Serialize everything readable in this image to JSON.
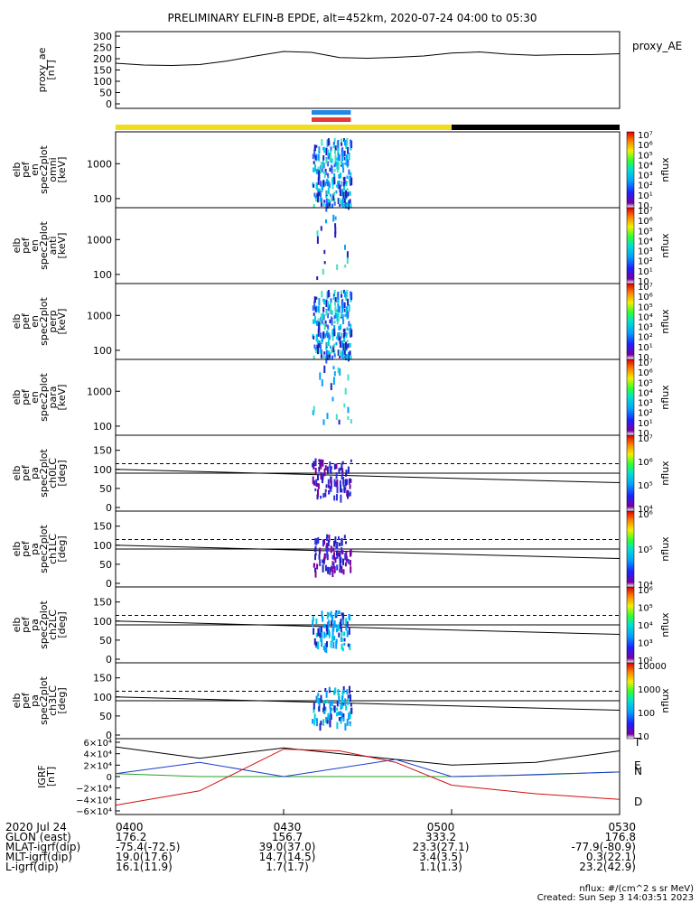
{
  "title": "PRELIMINARY ELFIN-B EPDE, alt=452km, 2020-07-24 04:00 to 05:30",
  "colors": {
    "orbit_bar_yellow": "#f2dc1e",
    "orbit_bar_black": "#000000",
    "marker_blue": "#1e88e5",
    "marker_red": "#e53935",
    "field_black": "#000000",
    "field_blue": "#1e3cc8",
    "field_green": "#28a028",
    "field_red": "#d01010"
  },
  "panels": [
    {
      "id": "ae",
      "ylabel": [
        "proxy_ae",
        "[nT]"
      ],
      "yticks": [
        "0",
        "50",
        "100",
        "150",
        "200",
        "250",
        "300"
      ],
      "side_label": "proxy_AE"
    },
    {
      "id": "omni",
      "ylabel": [
        "elb",
        "pef",
        "en",
        "spec2plot",
        "omni",
        "[keV]"
      ],
      "yticks": [
        "100",
        "1000"
      ],
      "cb_ticks": [
        "10",
        "10¹",
        "10²",
        "10³",
        "10⁴",
        "10⁵",
        "10⁶",
        "10⁷"
      ],
      "cb_label": "nflux"
    },
    {
      "id": "anti",
      "ylabel": [
        "elb",
        "pef",
        "en",
        "spec2plot",
        "anti",
        "[keV]"
      ],
      "yticks": [
        "100",
        "1000"
      ],
      "cb_ticks": [
        "10",
        "10¹",
        "10²",
        "10³",
        "10⁴",
        "10⁵",
        "10⁶",
        "10⁷"
      ],
      "cb_label": "nflux"
    },
    {
      "id": "perp",
      "ylabel": [
        "elb",
        "pef",
        "en",
        "spec2plot",
        "perp",
        "[keV]"
      ],
      "yticks": [
        "100",
        "1000"
      ],
      "cb_ticks": [
        "10",
        "10¹",
        "10²",
        "10³",
        "10⁴",
        "10⁵",
        "10⁶",
        "10⁷"
      ],
      "cb_label": "nflux"
    },
    {
      "id": "para",
      "ylabel": [
        "elb",
        "pef",
        "en",
        "spec2plot",
        "para",
        "[keV]"
      ],
      "yticks": [
        "100",
        "1000"
      ],
      "cb_ticks": [
        "10",
        "10¹",
        "10²",
        "10³",
        "10⁴",
        "10⁵",
        "10⁶",
        "10⁷"
      ],
      "cb_label": "nflux"
    },
    {
      "id": "ch0",
      "ylabel": [
        "elb",
        "pef",
        "pa",
        "spec2plot",
        "ch0LC",
        "[deg]"
      ],
      "yticks": [
        "0",
        "50",
        "100",
        "150"
      ],
      "cb_ticks": [
        "10⁴",
        "10⁵",
        "10⁶",
        "10⁷"
      ],
      "cb_label": "nflux"
    },
    {
      "id": "ch1",
      "ylabel": [
        "elb",
        "pef",
        "pa",
        "spec2plot",
        "ch1LC",
        "[deg]"
      ],
      "yticks": [
        "0",
        "50",
        "100",
        "150"
      ],
      "cb_ticks": [
        "10⁴",
        "10⁵",
        "10⁶"
      ],
      "cb_label": "nflux"
    },
    {
      "id": "ch2",
      "ylabel": [
        "elb",
        "pef",
        "pa",
        "spec2plot",
        "ch2LC",
        "[deg]"
      ],
      "yticks": [
        "0",
        "50",
        "100",
        "150"
      ],
      "cb_ticks": [
        "10²",
        "10³",
        "10⁴",
        "10⁵",
        "10⁶"
      ],
      "cb_label": "nflux"
    },
    {
      "id": "ch3",
      "ylabel": [
        "elb",
        "pef",
        "pa",
        "spec2plot",
        "ch3LC",
        "[deg]"
      ],
      "yticks": [
        "0",
        "50",
        "100",
        "150"
      ],
      "cb_ticks": [
        "10",
        "100",
        "1000",
        "10000"
      ],
      "cb_label": "nflux"
    },
    {
      "id": "igrf",
      "ylabel": [
        "IGRF",
        "[nT]"
      ],
      "yticks": [
        "−6×10⁴",
        "−4×10⁴",
        "−2×10⁴",
        "0",
        "2×10⁴",
        "4×10⁴",
        "6×10⁴"
      ],
      "side_labels": [
        "T",
        "E",
        "N",
        "D"
      ]
    }
  ],
  "chart_data": {
    "type": "line",
    "x_ticks": [
      "0400",
      "0430",
      "0500",
      "0530"
    ],
    "proxy_ae": {
      "ylim": [
        0,
        300
      ],
      "x": [
        0,
        5,
        10,
        15,
        20,
        25,
        30,
        35,
        40,
        45,
        50,
        55,
        60,
        65,
        70,
        75,
        80,
        85,
        90
      ],
      "y": [
        180,
        172,
        170,
        174,
        190,
        212,
        232,
        228,
        205,
        202,
        206,
        212,
        225,
        230,
        220,
        215,
        218,
        218,
        222
      ]
    },
    "igrf": {
      "ylim": [
        -60000,
        60000
      ],
      "series": [
        {
          "name": "T",
          "x": [
            0,
            15,
            30,
            45,
            60,
            75,
            90
          ],
          "y": [
            52000,
            32000,
            50000,
            35000,
            20000,
            25000,
            45000
          ]
        },
        {
          "name": "E",
          "x": [
            0,
            15,
            30,
            45,
            60,
            75,
            90
          ],
          "y": [
            5000,
            0,
            0,
            0,
            0,
            3000,
            8000
          ]
        },
        {
          "name": "N",
          "x": [
            0,
            15,
            30,
            40,
            50,
            60,
            70,
            80,
            90
          ],
          "y": [
            5000,
            25000,
            0,
            15000,
            30000,
            0,
            2000,
            5000,
            8000
          ]
        },
        {
          "name": "D",
          "x": [
            0,
            15,
            30,
            40,
            50,
            60,
            75,
            90
          ],
          "y": [
            -50000,
            -25000,
            48000,
            45000,
            25000,
            -15000,
            -30000,
            -40000
          ]
        }
      ]
    },
    "pa_lines": {
      "dashed": 115,
      "solid_upper": 90,
      "solid_lower_start": 100,
      "solid_lower_end": 65
    },
    "orbit_bar": {
      "yellow_until_min": 60,
      "black_until_min": 90
    },
    "event_window": {
      "start_min": 35,
      "end_min": 42
    }
  },
  "footer": {
    "rows": [
      {
        "label": "2020 Jul 24",
        "vals": [
          "0400",
          "0430",
          "0500",
          "0530"
        ]
      },
      {
        "label": "GLON (east)",
        "vals": [
          "176.2",
          "156.7",
          "333.2",
          "176.8"
        ]
      },
      {
        "label": "MLAT-igrf(dip)",
        "vals": [
          "-75.4(-72.5)",
          "39.0(37.0)",
          "23.3(27.1)",
          "-77.9(-80.9)"
        ]
      },
      {
        "label": "MLT-igrf(dip)",
        "vals": [
          "19.0(17.6)",
          "14.7(14.5)",
          "3.4(3.5)",
          "0.3(22.1)"
        ]
      },
      {
        "label": "L-igrf(dip)",
        "vals": [
          "16.1(11.9)",
          "1.7(1.7)",
          "1.1(1.3)",
          "23.2(42.9)"
        ]
      }
    ],
    "units_note": "nflux: #/(cm^2 s sr MeV)",
    "created": "Created: Sun Sep  3 14:03:51 2023"
  }
}
